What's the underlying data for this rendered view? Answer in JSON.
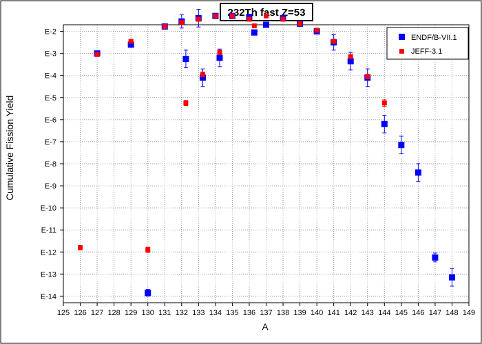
{
  "chart_data": {
    "type": "scatter",
    "title": "232Th fast Z=53",
    "xlabel": "A",
    "ylabel": "Cumulative Fission Yield",
    "xlim": [
      125,
      149
    ],
    "ylim_exponent": [
      -14.3,
      -1.7
    ],
    "y_scale": "log",
    "grid": true,
    "legend_position": "top-right",
    "x_ticks": [
      "125",
      "126",
      "127",
      "128",
      "129",
      "130",
      "131",
      "132",
      "133",
      "134",
      "135",
      "136",
      "137",
      "138",
      "139",
      "140",
      "141",
      "142",
      "143",
      "144",
      "145",
      "146",
      "147",
      "148",
      "149"
    ],
    "y_ticks": [
      {
        "exp": -2,
        "label": "E-2"
      },
      {
        "exp": -3,
        "label": "E-3"
      },
      {
        "exp": -4,
        "label": "E-4"
      },
      {
        "exp": -5,
        "label": "E-5"
      },
      {
        "exp": -6,
        "label": "E-6"
      },
      {
        "exp": -7,
        "label": "E-7"
      },
      {
        "exp": -8,
        "label": "E-8"
      },
      {
        "exp": -9,
        "label": "E-9"
      },
      {
        "exp": -10,
        "label": "E-10"
      },
      {
        "exp": -11,
        "label": "E-11"
      },
      {
        "exp": -12,
        "label": "E-12"
      },
      {
        "exp": -13,
        "label": "E-13"
      },
      {
        "exp": -14,
        "label": "E-14"
      }
    ],
    "series": [
      {
        "name": "ENDF/B-VII.1",
        "color": "#0000ff",
        "marker": "square",
        "points": [
          {
            "x": 127,
            "y_exp": -3.0,
            "err": 0.0
          },
          {
            "x": 129,
            "y_exp": -2.6,
            "err": 0.0
          },
          {
            "x": 130,
            "y_exp": -13.85,
            "err": 0.15
          },
          {
            "x": 131,
            "y_exp": -1.78,
            "err": 0.0
          },
          {
            "x": 132,
            "y_exp": -1.55,
            "err": 0.3
          },
          {
            "x": 132.25,
            "y_exp": -3.25,
            "err": 0.4
          },
          {
            "x": 133,
            "y_exp": -1.4,
            "err": 0.4
          },
          {
            "x": 133.25,
            "y_exp": -4.1,
            "err": 0.4
          },
          {
            "x": 134,
            "y_exp": -1.3,
            "err": 0.1
          },
          {
            "x": 134.25,
            "y_exp": -3.2,
            "err": 0.4
          },
          {
            "x": 135,
            "y_exp": -1.3,
            "err": 0.0
          },
          {
            "x": 136,
            "y_exp": -1.35,
            "err": 0.1
          },
          {
            "x": 136.3,
            "y_exp": -2.05,
            "err": 0.0
          },
          {
            "x": 137,
            "y_exp": -1.7,
            "err": 0.0
          },
          {
            "x": 138,
            "y_exp": -1.4,
            "err": 0.0
          },
          {
            "x": 139,
            "y_exp": -1.65,
            "err": 0.0
          },
          {
            "x": 140,
            "y_exp": -2.0,
            "err": 0.1
          },
          {
            "x": 141,
            "y_exp": -2.5,
            "err": 0.35
          },
          {
            "x": 142,
            "y_exp": -3.35,
            "err": 0.4
          },
          {
            "x": 143,
            "y_exp": -4.1,
            "err": 0.4
          },
          {
            "x": 144,
            "y_exp": -6.2,
            "err": 0.4
          },
          {
            "x": 145,
            "y_exp": -7.15,
            "err": 0.4
          },
          {
            "x": 146,
            "y_exp": -8.4,
            "err": 0.4
          },
          {
            "x": 147,
            "y_exp": -12.25,
            "err": 0.2
          },
          {
            "x": 148,
            "y_exp": -13.15,
            "err": 0.4
          }
        ]
      },
      {
        "name": "JEFF-3.1",
        "color": "#ff0000",
        "marker": "square",
        "points": [
          {
            "x": 126,
            "y_exp": -11.8,
            "err": 0.1
          },
          {
            "x": 127,
            "y_exp": -3.05,
            "err": 0.0
          },
          {
            "x": 129,
            "y_exp": -2.45,
            "err": 0.0
          },
          {
            "x": 130,
            "y_exp": -11.9,
            "err": 0.12
          },
          {
            "x": 131,
            "y_exp": -1.78,
            "err": 0.0
          },
          {
            "x": 132,
            "y_exp": -1.6,
            "err": 0.0
          },
          {
            "x": 132.25,
            "y_exp": -5.25,
            "err": 0.12
          },
          {
            "x": 133,
            "y_exp": -1.45,
            "err": 0.05
          },
          {
            "x": 133.25,
            "y_exp": -3.95,
            "err": 0.1
          },
          {
            "x": 134,
            "y_exp": -1.3,
            "err": 0.0
          },
          {
            "x": 134.25,
            "y_exp": -2.95,
            "err": 0.1
          },
          {
            "x": 135,
            "y_exp": -1.3,
            "err": 0.0
          },
          {
            "x": 136,
            "y_exp": -1.45,
            "err": 0.0
          },
          {
            "x": 136.3,
            "y_exp": -1.75,
            "err": 0.0
          },
          {
            "x": 137,
            "y_exp": -1.3,
            "err": 0.0
          },
          {
            "x": 138,
            "y_exp": -1.45,
            "err": 0.0
          },
          {
            "x": 139,
            "y_exp": -1.65,
            "err": 0.0
          },
          {
            "x": 140,
            "y_exp": -1.95,
            "err": 0.0
          },
          {
            "x": 141,
            "y_exp": -2.45,
            "err": 0.0
          },
          {
            "x": 142,
            "y_exp": -3.15,
            "err": 0.05
          },
          {
            "x": 143,
            "y_exp": -4.05,
            "err": 0.1
          },
          {
            "x": 144,
            "y_exp": -5.25,
            "err": 0.15
          }
        ]
      }
    ]
  }
}
